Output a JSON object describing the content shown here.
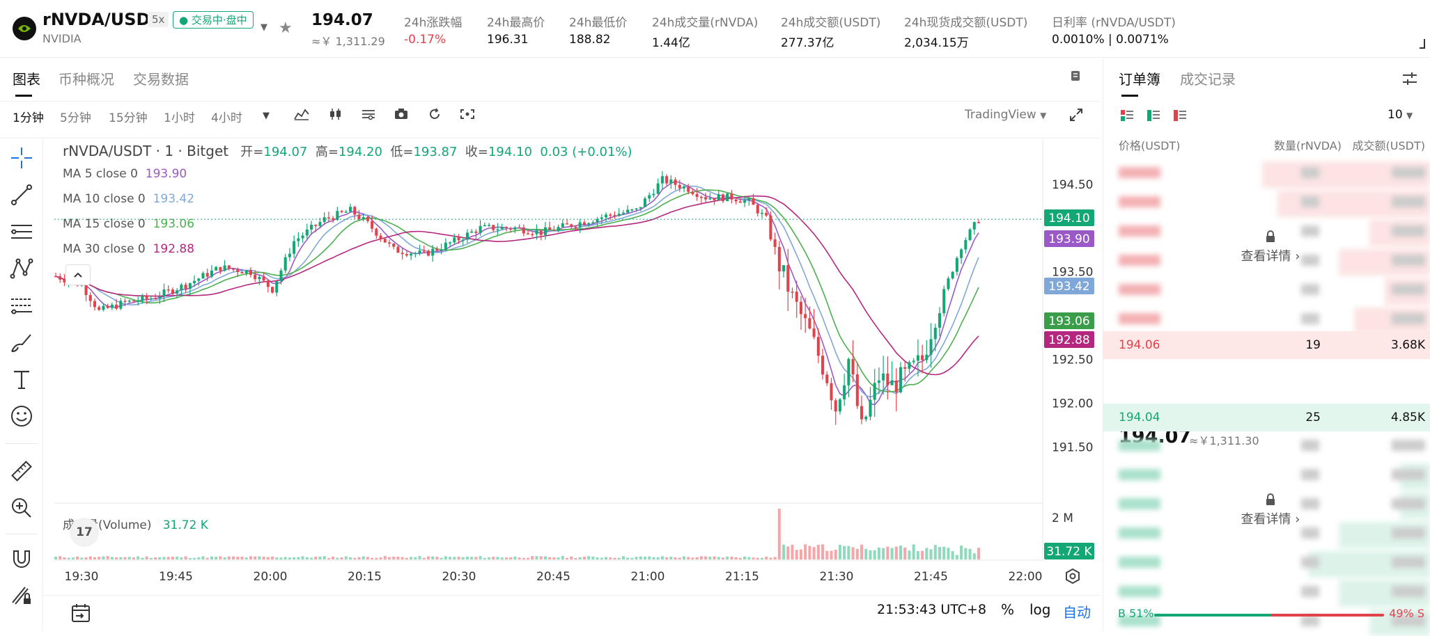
{
  "header": {
    "symbol": "rNVDA/USDT",
    "leverage": "5x",
    "status": "交易中·盘中",
    "name": "NVIDIA",
    "price": "194.07",
    "price_cny": "≈￥ 1,311.29",
    "stats": [
      {
        "label": "24h涨跌幅",
        "value": "-0.17%",
        "neg": true
      },
      {
        "label": "24h最高价",
        "value": "196.31"
      },
      {
        "label": "24h最低价",
        "value": "188.82"
      },
      {
        "label": "24h成交量(rNVDA)",
        "value": "1.44亿"
      },
      {
        "label": "24h成交额(USDT)",
        "value": "277.37亿"
      },
      {
        "label": "24h现货成交额(USDT)",
        "value": "2,034.15万"
      },
      {
        "label": "日利率 (rNVDA/USDT)",
        "value": "0.0010% | 0.0071%"
      }
    ]
  },
  "chart_tabs": [
    "图表",
    "币种概况",
    "交易数据"
  ],
  "timeframes": [
    "1分钟",
    "5分钟",
    "15分钟",
    "1小时",
    "4小时"
  ],
  "tradingview_label": "TradingView",
  "legend": {
    "title": "rNVDA/USDT · 1 · Bitget",
    "open_label": "开=",
    "open": "194.07",
    "high_label": "高=",
    "high": "194.20",
    "low_label": "低=",
    "low": "193.87",
    "close_label": "收=",
    "close": "194.10",
    "change": "0.03 (+0.01%)"
  },
  "ma_lines": [
    {
      "label": "MA 5 close 0",
      "value": "193.90",
      "color": "#9b59c7"
    },
    {
      "label": "MA 10 close 0",
      "value": "193.42",
      "color": "#7fa8d9"
    },
    {
      "label": "MA 15 close 0",
      "value": "193.06",
      "color": "#4caf50"
    },
    {
      "label": "MA 30 close 0",
      "value": "192.88",
      "color": "#b5267e"
    }
  ],
  "volume": {
    "label": "成交量(Volume)",
    "value": "31.72 K",
    "axis_top": "2 M",
    "badge": "31.72 K"
  },
  "chart_data": {
    "type": "candlestick",
    "y_ticks": [
      "194.50",
      "193.50",
      "192.50",
      "192.00",
      "191.50"
    ],
    "y_tick_values": [
      194.5,
      193.5,
      192.5,
      192.0,
      191.5
    ],
    "ylim": [
      191.2,
      194.8
    ],
    "x_ticks": [
      "19:30",
      "19:45",
      "20:00",
      "20:15",
      "20:30",
      "20:45",
      "21:00",
      "21:15",
      "21:30",
      "21:45",
      "22:00"
    ],
    "last_price": "194.10",
    "price_tags": [
      {
        "value": "194.10",
        "v": 194.1,
        "color": "#12a774"
      },
      {
        "value": "193.90",
        "v": 193.9,
        "color": "#9b59c7"
      },
      {
        "value": "193.42",
        "v": 193.42,
        "color": "#7fa8d9"
      },
      {
        "value": "193.06",
        "v": 193.06,
        "color": "#3a9d4a"
      },
      {
        "value": "192.88",
        "v": 192.88,
        "color": "#b5267e"
      }
    ],
    "up_color": "#12a774",
    "down_color": "#e0434b"
  },
  "time_display": "21:53:43 UTC+8",
  "bottom_options": [
    "%",
    "log",
    "自动"
  ],
  "orderbook": {
    "tabs": [
      "订单簿",
      "成交记录"
    ],
    "depth": "10",
    "headers": [
      "价格(USDT)",
      "数量(rNVDA)",
      "成交额(USDT)"
    ],
    "lock_text": "查看详情",
    "best_ask": {
      "price": "194.06",
      "qty": "19",
      "amount": "3.68K"
    },
    "mid_price": "194.07",
    "mid_cny": "≈￥1,311.30",
    "best_bid": {
      "price": "194.04",
      "qty": "25",
      "amount": "4.85K"
    },
    "buy_ratio": "B 51%",
    "sell_ratio": "49% S",
    "buy_fraction": 0.51
  }
}
